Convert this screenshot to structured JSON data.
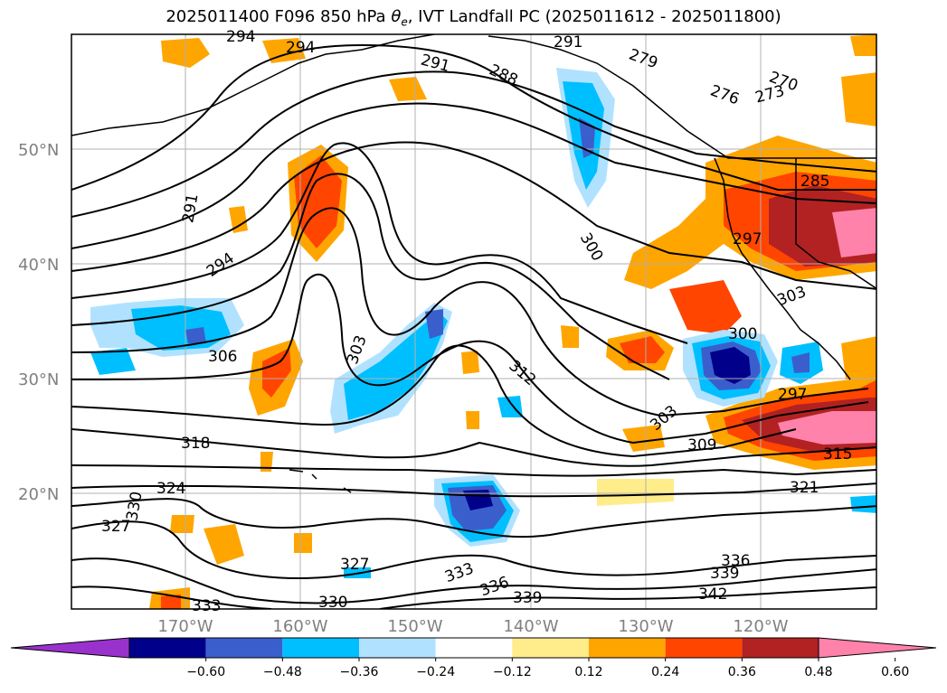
{
  "title": "2025011400 F096 850 hPa θe, IVT Landfall PC (2025011612 - 2025011800)",
  "title_parts": {
    "prefix": "2025011400 F096 850 hPa ",
    "theta": "θ",
    "sub": "e",
    "suffix": ", IVT Landfall PC (2025011612 - 2025011800)"
  },
  "map": {
    "lat_labels": [
      "50°N",
      "40°N",
      "30°N",
      "20°N"
    ],
    "lon_labels": [
      "170°W",
      "160°W",
      "150°W",
      "140°W",
      "130°W",
      "120°W"
    ],
    "gridlines": true
  },
  "contour_labels": [
    "294",
    "294",
    "291",
    "288",
    "285",
    "279",
    "276",
    "270",
    "273",
    "291",
    "294",
    "285",
    "297",
    "300",
    "303",
    "306",
    "303",
    "312",
    "300",
    "297",
    "303",
    "309",
    "318",
    "315",
    "321",
    "324",
    "330",
    "327",
    "327",
    "333",
    "336",
    "336",
    "339",
    "333",
    "330",
    "339",
    "342"
  ],
  "colorbar": {
    "colors": [
      "#9932cc",
      "#00008b",
      "#3a5fcd",
      "#00bfff",
      "#b0e2ff",
      "#ffffff",
      "#ffec8b",
      "#ffa500",
      "#ff4500",
      "#b22222",
      "#ff82ab"
    ],
    "ticks": [
      "−0.60",
      "−0.48",
      "−0.36",
      "−0.24",
      "−0.12",
      "0.12",
      "0.24",
      "0.36",
      "0.48",
      "0.60"
    ],
    "extend": "both"
  },
  "chart_data": {
    "type": "map-contour",
    "title": "2025011400 F096 850 hPa θe, IVT Landfall PC (2025011612 - 2025011800)",
    "lat_range": [
      10,
      60
    ],
    "lon_range": [
      -180,
      -110
    ],
    "contour_levels_labeled": [
      270,
      273,
      276,
      279,
      285,
      288,
      291,
      294,
      297,
      300,
      303,
      306,
      309,
      312,
      315,
      318,
      321,
      324,
      327,
      330,
      333,
      336,
      339,
      342
    ],
    "filled_levels": [
      -0.6,
      -0.48,
      -0.36,
      -0.24,
      -0.12,
      0.12,
      0.24,
      0.36,
      0.48,
      0.6
    ]
  }
}
